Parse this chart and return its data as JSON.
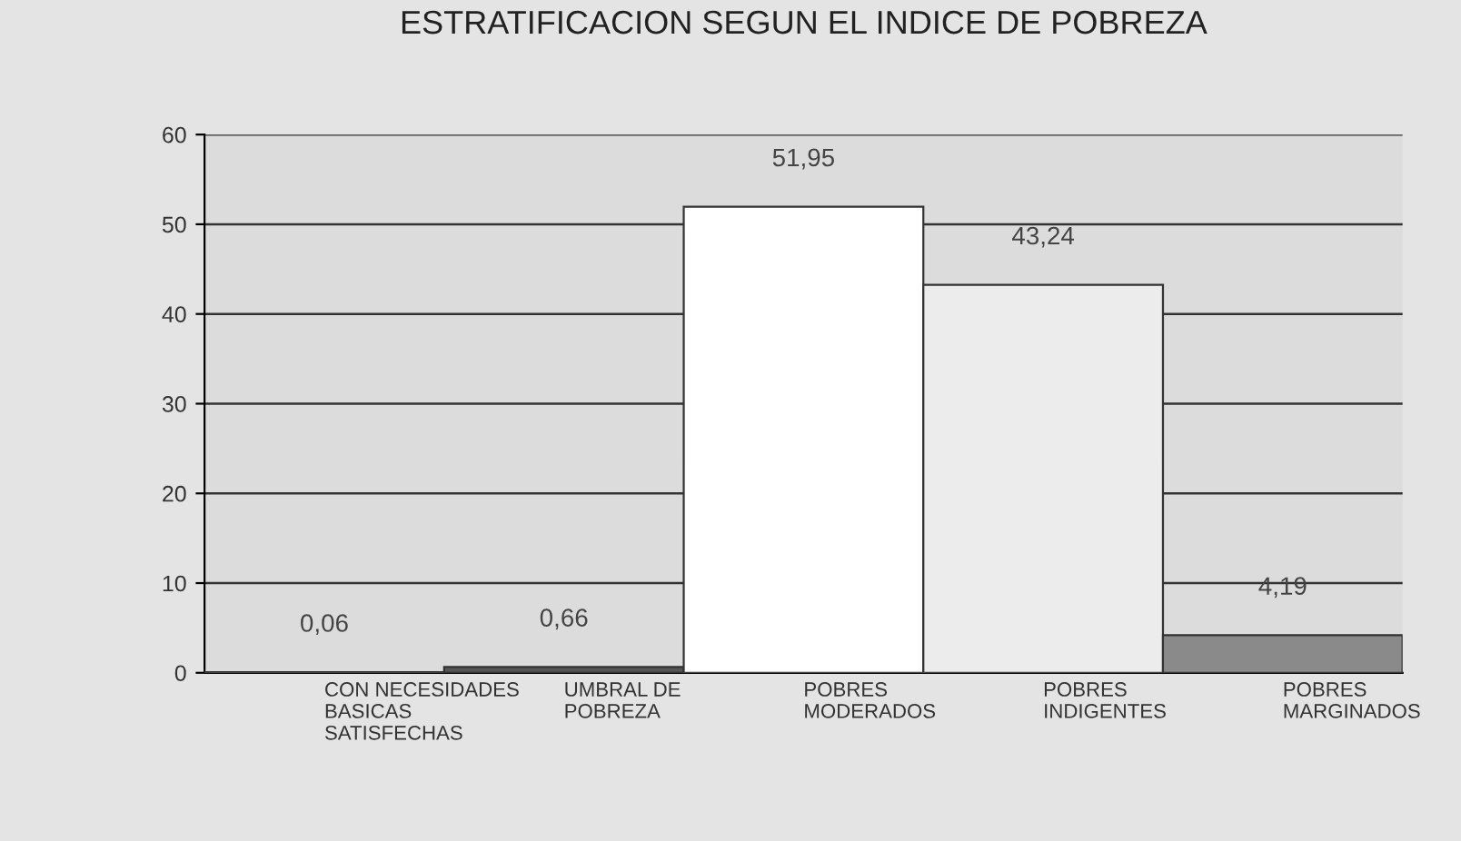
{
  "chart_data": {
    "type": "bar",
    "title": "ESTRATIFICACION SEGUN EL INDICE DE POBREZA",
    "categories": [
      "CON NECESIDADES\nBASICAS\nSATISFECHAS",
      "UMBRAL DE\nPOBREZA",
      "POBRES\nMODERADOS",
      "POBRES\nINDIGENTES",
      "POBRES\nMARGINADOS"
    ],
    "values": [
      0.06,
      0.66,
      51.95,
      43.24,
      4.19
    ],
    "value_labels": [
      "0,06",
      "0,66",
      "51,95",
      "43,24",
      "4,19"
    ],
    "colors": [
      "#ffffff",
      "#555555",
      "#ffffff",
      "#ececec",
      "#8a8a8a"
    ],
    "ylim": [
      0,
      60
    ],
    "yticks": [
      0,
      10,
      20,
      30,
      40,
      50,
      60
    ],
    "grid": "y"
  }
}
